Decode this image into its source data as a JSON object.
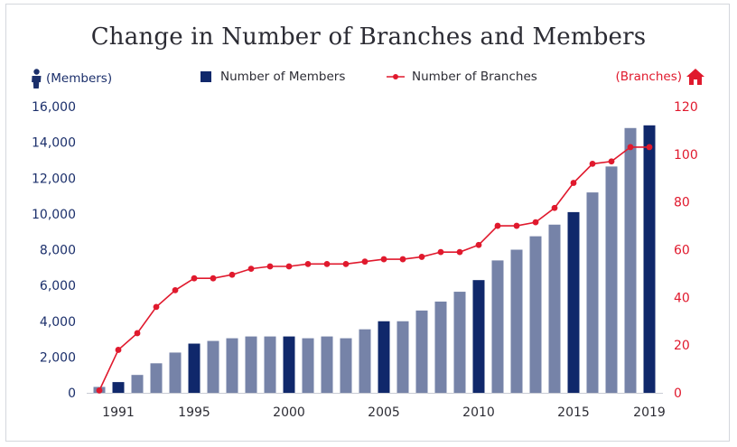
{
  "chart_data": {
    "type": "bar+line",
    "title": "Change in Number of Branches and Members",
    "left_axis_label": "(Members)",
    "right_axis_label": "(Branches)",
    "legend": [
      "Number of Members",
      "Number of Branches"
    ],
    "x": [
      1990,
      1991,
      1992,
      1993,
      1994,
      1995,
      1996,
      1997,
      1998,
      1999,
      2000,
      2001,
      2002,
      2003,
      2004,
      2005,
      2006,
      2007,
      2008,
      2009,
      2010,
      2011,
      2012,
      2013,
      2014,
      2015,
      2016,
      2017,
      2018,
      2019
    ],
    "x_tick_labels": [
      "1991",
      "1995",
      "2000",
      "2005",
      "2010",
      "2015",
      "2019"
    ],
    "highlight_years": [
      1991,
      1995,
      2000,
      2005,
      2010,
      2015,
      2019
    ],
    "series": [
      {
        "name": "Number of Members",
        "kind": "bar",
        "axis": "left",
        "values": [
          330,
          600,
          1000,
          1650,
          2250,
          2750,
          2900,
          3050,
          3150,
          3150,
          3150,
          3050,
          3150,
          3050,
          3550,
          4000,
          4000,
          4600,
          5100,
          5650,
          6300,
          7400,
          8000,
          8750,
          9400,
          10100,
          11200,
          12650,
          14800,
          14950
        ]
      },
      {
        "name": "Number of Branches",
        "kind": "line",
        "axis": "right",
        "values": [
          1,
          18,
          25,
          36,
          43,
          48,
          48,
          49.5,
          52,
          53,
          53,
          54,
          54,
          54,
          55,
          56,
          56,
          57,
          59,
          59,
          62,
          70,
          70,
          71.5,
          77.5,
          88,
          96,
          97,
          103,
          103
        ]
      }
    ],
    "left_axis": {
      "min": 0,
      "max": 16000,
      "ticks": [
        "0",
        "2,000",
        "4,000",
        "6,000",
        "8,000",
        "10,000",
        "12,000",
        "14,000",
        "16,000"
      ]
    },
    "right_axis": {
      "min": 0,
      "max": 120,
      "ticks": [
        "0",
        "20",
        "40",
        "60",
        "80",
        "100",
        "120"
      ]
    },
    "colors": {
      "bar_light": "#7683a8",
      "bar_dark": "#10286b",
      "line": "#e0192d",
      "left_axis_text": "#1b2f6b",
      "right_axis_text": "#e0192d"
    },
    "icons": {
      "left": "person-icon",
      "right": "house-icon"
    }
  }
}
